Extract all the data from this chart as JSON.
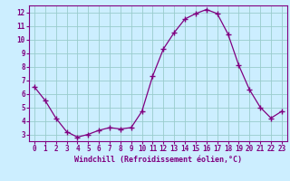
{
  "x": [
    0,
    1,
    2,
    3,
    4,
    5,
    6,
    7,
    8,
    9,
    10,
    11,
    12,
    13,
    14,
    15,
    16,
    17,
    18,
    19,
    20,
    21,
    22,
    23
  ],
  "y": [
    6.5,
    5.5,
    4.2,
    3.2,
    2.8,
    3.0,
    3.3,
    3.5,
    3.4,
    3.5,
    4.7,
    7.3,
    9.3,
    10.5,
    11.5,
    11.9,
    12.2,
    11.9,
    10.4,
    8.1,
    6.3,
    5.0,
    4.2,
    4.7
  ],
  "xlabel": "Windchill (Refroidissement éolien,°C)",
  "xlim": [
    -0.5,
    23.5
  ],
  "ylim": [
    2.5,
    12.5
  ],
  "yticks": [
    3,
    4,
    5,
    6,
    7,
    8,
    9,
    10,
    11,
    12
  ],
  "xticks": [
    0,
    1,
    2,
    3,
    4,
    5,
    6,
    7,
    8,
    9,
    10,
    11,
    12,
    13,
    14,
    15,
    16,
    17,
    18,
    19,
    20,
    21,
    22,
    23
  ],
  "line_color": "#800080",
  "marker": "+",
  "bg_color": "#cceeff",
  "grid_color": "#99cccc",
  "label_color": "#800080",
  "tick_color": "#800080",
  "tick_fontsize": 5.5,
  "xlabel_fontsize": 6.0
}
